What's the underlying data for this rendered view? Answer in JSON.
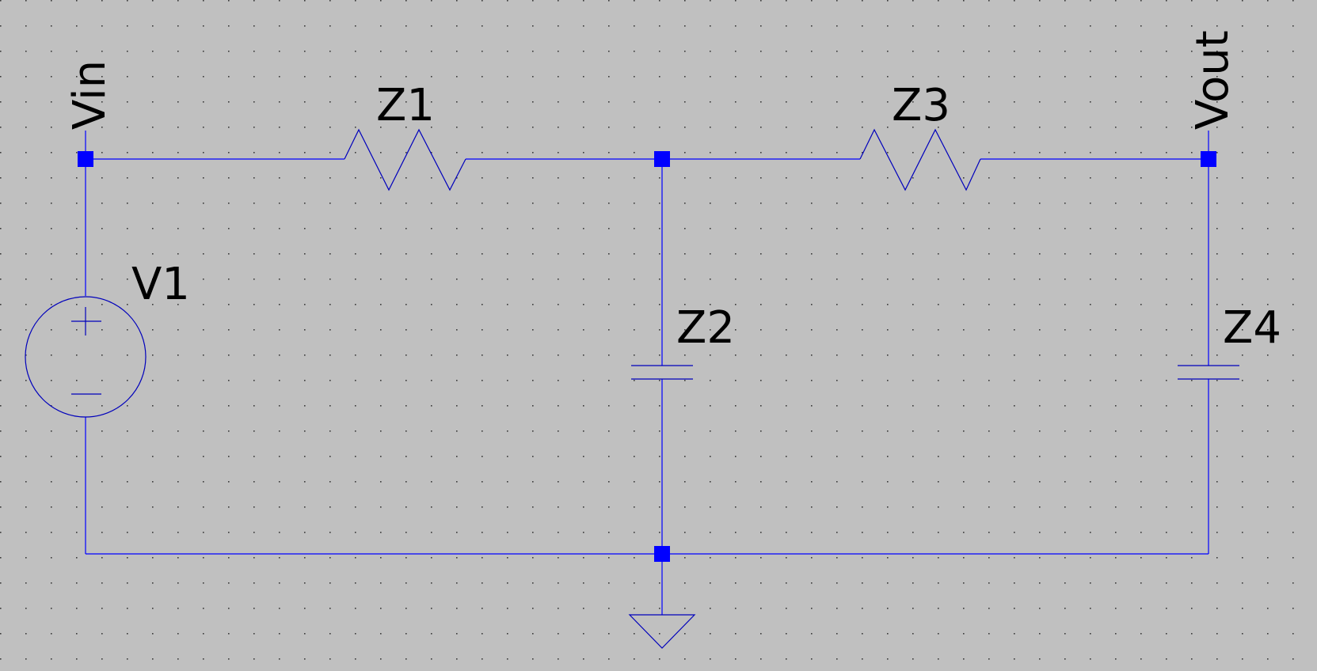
{
  "canvas": {
    "background": "#c0c0c0",
    "grid_dot_color": "#3a3a3a",
    "wire_color": "#0000ff"
  },
  "nets": {
    "input": "Vin",
    "output": "Vout"
  },
  "components": {
    "source": {
      "label": "V1",
      "type": "voltage-source",
      "plus": "+",
      "minus": "−"
    },
    "z1": {
      "label": "Z1",
      "type": "resistor"
    },
    "z2": {
      "label": "Z2",
      "type": "capacitor"
    },
    "z3": {
      "label": "Z3",
      "type": "resistor"
    },
    "z4": {
      "label": "Z4",
      "type": "capacitor"
    },
    "ground": {
      "type": "ground"
    }
  }
}
